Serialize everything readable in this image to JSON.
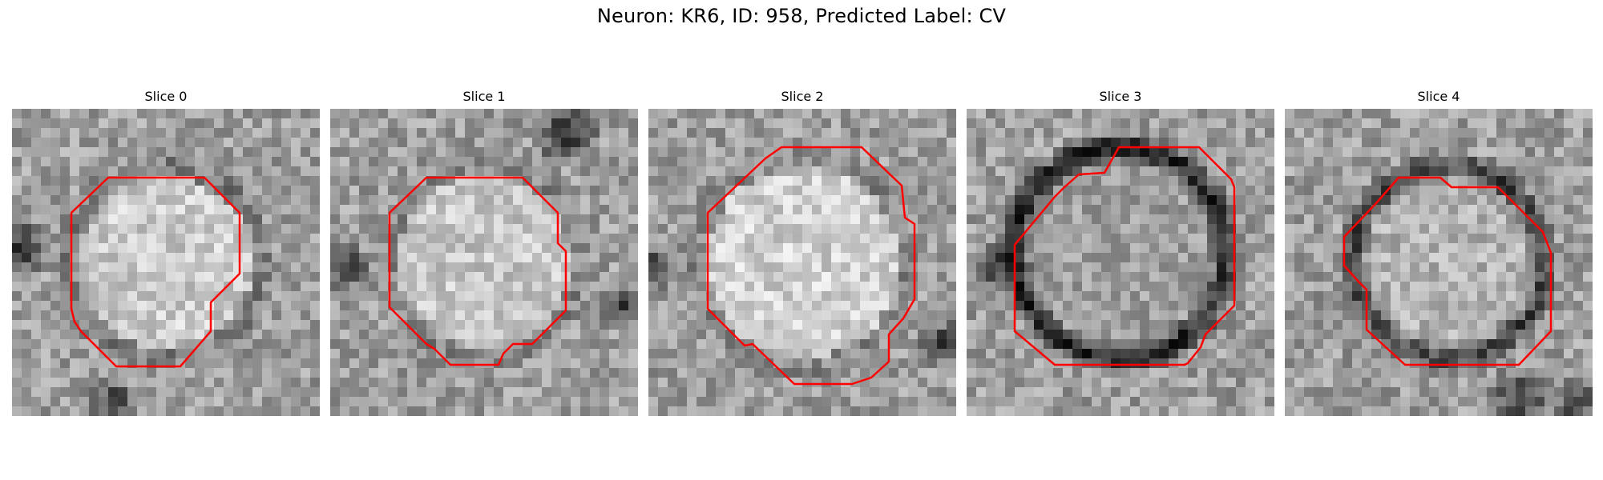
{
  "figure": {
    "title": "Neuron: KR6, ID: 958, Predicted Label: CV"
  },
  "slices": [
    {
      "label": "Slice 0"
    },
    {
      "label": "Slice 1"
    },
    {
      "label": "Slice 2"
    },
    {
      "label": "Slice 3"
    },
    {
      "label": "Slice 4"
    }
  ],
  "colors": {
    "contour": "#ff0000",
    "background": "#ffffff"
  }
}
